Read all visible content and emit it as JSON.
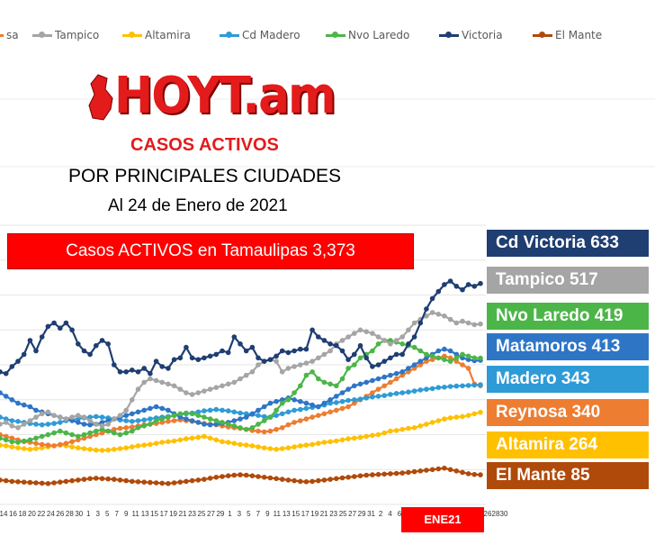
{
  "legend": [
    {
      "label": "sa",
      "color": "#ed7d31"
    },
    {
      "label": "Tampico",
      "color": "#a5a5a5"
    },
    {
      "label": "Altamira",
      "color": "#ffc000"
    },
    {
      "label": "Cd Madero",
      "color": "#2e9bd6"
    },
    {
      "label": "Nvo Laredo",
      "color": "#4cb548"
    },
    {
      "label": "Victoria",
      "color": "#1f3e72"
    },
    {
      "label": "El Mante",
      "color": "#b04a0a"
    }
  ],
  "logo": {
    "text": "HOYT.am"
  },
  "heading": {
    "line1": "CASOS ACTIVOS",
    "line2": "POR PRINCIPALES CIUDADES",
    "line3": "Al 24 de Enero de 2021"
  },
  "total_banner": "Casos ACTIVOS en Tamaulipas  3,373",
  "month_badge": "ENE21",
  "city_labels": [
    {
      "text": "Cd Victoria 633",
      "bg": "#1f3e72"
    },
    {
      "text": "Tampico 517",
      "bg": "#a5a5a5"
    },
    {
      "text": "Nvo Laredo 419",
      "bg": "#4cb548"
    },
    {
      "text": "Matamoros 413",
      "bg": "#2e75c6"
    },
    {
      "text": "Madero 343",
      "bg": "#2e9bd6"
    },
    {
      "text": "Reynosa 340",
      "bg": "#ed7d31"
    },
    {
      "text": "Altamira 264",
      "bg": "#ffc000"
    },
    {
      "text": "El Mante 85",
      "bg": "#b04a0a"
    }
  ],
  "chart_data": {
    "type": "line",
    "title": "CASOS ACTIVOS POR PRINCIPALES CIUDADES",
    "xlabel": "",
    "ylabel": "",
    "x_tick_labels": [
      "14",
      "16",
      "18",
      "20",
      "22",
      "24",
      "26",
      "28",
      "30",
      "1",
      "3",
      "5",
      "7",
      "9",
      "11",
      "13",
      "15",
      "17",
      "19",
      "21",
      "23",
      "25",
      "27",
      "29",
      "1",
      "3",
      "5",
      "7",
      "9",
      "11",
      "13",
      "15",
      "17",
      "19",
      "21",
      "23",
      "25",
      "27",
      "29",
      "31",
      "2",
      "4",
      "6",
      "26",
      "28",
      "30"
    ],
    "ylim": [
      0,
      800
    ],
    "grid": true,
    "series": [
      {
        "name": "Victoria",
        "color": "#1f3e72",
        "values": [
          380,
          375,
          395,
          410,
          430,
          470,
          440,
          480,
          510,
          520,
          505,
          520,
          500,
          460,
          440,
          430,
          455,
          470,
          460,
          400,
          380,
          380,
          385,
          380,
          390,
          375,
          410,
          395,
          390,
          415,
          420,
          450,
          420,
          415,
          420,
          425,
          430,
          440,
          435,
          480,
          460,
          440,
          450,
          420,
          410,
          415,
          425,
          440,
          435,
          440,
          445,
          445,
          500,
          480,
          470,
          460,
          455,
          440,
          415,
          430,
          455,
          420,
          395,
          400,
          410,
          420,
          430,
          430,
          460,
          480,
          520,
          560,
          590,
          610,
          630,
          640,
          625,
          615,
          630,
          625,
          633
        ]
      },
      {
        "name": "Tampico",
        "color": "#a5a5a5",
        "values": [
          230,
          235,
          225,
          220,
          230,
          240,
          250,
          260,
          265,
          255,
          250,
          245,
          250,
          255,
          250,
          240,
          230,
          225,
          230,
          245,
          255,
          270,
          300,
          330,
          350,
          360,
          355,
          350,
          345,
          340,
          330,
          320,
          315,
          320,
          325,
          330,
          335,
          340,
          345,
          350,
          360,
          370,
          380,
          400,
          410,
          415,
          410,
          380,
          390,
          395,
          400,
          405,
          410,
          420,
          430,
          440,
          460,
          470,
          480,
          490,
          500,
          495,
          490,
          480,
          470,
          460,
          470,
          480,
          500,
          520,
          530,
          540,
          550,
          545,
          540,
          530,
          520,
          525,
          520,
          515,
          517
        ]
      },
      {
        "name": "Nvo Laredo",
        "color": "#4cb548",
        "values": [
          190,
          185,
          180,
          178,
          182,
          185,
          190,
          195,
          200,
          205,
          210,
          205,
          200,
          195,
          200,
          205,
          210,
          215,
          210,
          205,
          200,
          205,
          210,
          220,
          225,
          230,
          240,
          245,
          250,
          255,
          260,
          262,
          260,
          255,
          250,
          245,
          240,
          235,
          230,
          225,
          220,
          215,
          220,
          230,
          240,
          250,
          270,
          290,
          300,
          320,
          340,
          370,
          380,
          360,
          350,
          345,
          340,
          360,
          390,
          400,
          420,
          430,
          440,
          460,
          470,
          470,
          465,
          460,
          455,
          450,
          440,
          430,
          425,
          420,
          415,
          410,
          420,
          430,
          425,
          420,
          419
        ]
      },
      {
        "name": "Matamoros",
        "color": "#2e75c6",
        "values": [
          320,
          310,
          300,
          290,
          285,
          280,
          270,
          265,
          260,
          255,
          250,
          245,
          240,
          235,
          230,
          228,
          230,
          235,
          240,
          245,
          250,
          255,
          260,
          265,
          270,
          275,
          280,
          275,
          270,
          260,
          250,
          245,
          240,
          235,
          230,
          228,
          230,
          232,
          235,
          240,
          245,
          250,
          260,
          270,
          280,
          290,
          295,
          300,
          305,
          300,
          295,
          290,
          285,
          280,
          290,
          300,
          310,
          320,
          330,
          340,
          345,
          350,
          355,
          360,
          365,
          370,
          375,
          380,
          390,
          400,
          410,
          420,
          430,
          440,
          445,
          440,
          430,
          420,
          415,
          412,
          413
        ]
      },
      {
        "name": "Madero",
        "color": "#2e9bd6",
        "values": [
          250,
          245,
          240,
          238,
          235,
          232,
          230,
          228,
          230,
          232,
          235,
          240,
          242,
          245,
          248,
          250,
          252,
          250,
          248,
          245,
          242,
          240,
          238,
          240,
          242,
          245,
          248,
          250,
          252,
          255,
          258,
          260,
          262,
          265,
          268,
          270,
          272,
          270,
          268,
          265,
          262,
          260,
          258,
          255,
          252,
          250,
          255,
          260,
          265,
          270,
          272,
          275,
          278,
          280,
          285,
          290,
          292,
          295,
          298,
          300,
          302,
          305,
          308,
          310,
          312,
          315,
          318,
          320,
          322,
          325,
          328,
          330,
          332,
          335,
          336,
          338,
          339,
          340,
          341,
          342,
          343
        ]
      },
      {
        "name": "Reynosa",
        "color": "#ed7d31",
        "values": [
          200,
          195,
          190,
          185,
          180,
          178,
          175,
          172,
          170,
          168,
          172,
          175,
          180,
          185,
          190,
          195,
          200,
          205,
          210,
          215,
          218,
          220,
          222,
          225,
          228,
          230,
          232,
          235,
          238,
          240,
          242,
          240,
          238,
          235,
          232,
          230,
          228,
          225,
          222,
          220,
          218,
          215,
          212,
          210,
          208,
          210,
          215,
          220,
          228,
          235,
          240,
          245,
          250,
          255,
          260,
          265,
          270,
          275,
          280,
          290,
          300,
          310,
          320,
          330,
          340,
          350,
          360,
          370,
          380,
          390,
          400,
          410,
          415,
          420,
          425,
          420,
          410,
          400,
          390,
          345,
          340
        ]
      },
      {
        "name": "Altamira",
        "color": "#ffc000",
        "values": [
          170,
          168,
          165,
          162,
          160,
          158,
          160,
          162,
          165,
          168,
          170,
          168,
          165,
          162,
          160,
          158,
          156,
          155,
          156,
          158,
          160,
          162,
          165,
          168,
          170,
          172,
          175,
          178,
          180,
          182,
          185,
          188,
          190,
          192,
          195,
          190,
          185,
          180,
          178,
          175,
          172,
          170,
          168,
          165,
          162,
          160,
          158,
          160,
          162,
          165,
          168,
          170,
          172,
          175,
          178,
          180,
          182,
          185,
          188,
          190,
          192,
          195,
          198,
          200,
          205,
          210,
          212,
          215,
          218,
          220,
          225,
          230,
          235,
          240,
          245,
          248,
          250,
          252,
          255,
          260,
          264
        ]
      },
      {
        "name": "El Mante",
        "color": "#b04a0a",
        "values": [
          70,
          68,
          66,
          65,
          64,
          63,
          62,
          61,
          60,
          62,
          64,
          66,
          68,
          70,
          72,
          74,
          75,
          74,
          73,
          72,
          70,
          68,
          66,
          65,
          64,
          63,
          62,
          61,
          60,
          62,
          64,
          66,
          68,
          70,
          72,
          75,
          78,
          80,
          82,
          84,
          85,
          84,
          82,
          80,
          78,
          76,
          74,
          72,
          70,
          68,
          66,
          65,
          66,
          68,
          70,
          72,
          74,
          76,
          78,
          80,
          82,
          84,
          85,
          86,
          87,
          88,
          89,
          90,
          92,
          94,
          96,
          98,
          100,
          102,
          104,
          100,
          96,
          92,
          88,
          86,
          85
        ]
      }
    ]
  }
}
